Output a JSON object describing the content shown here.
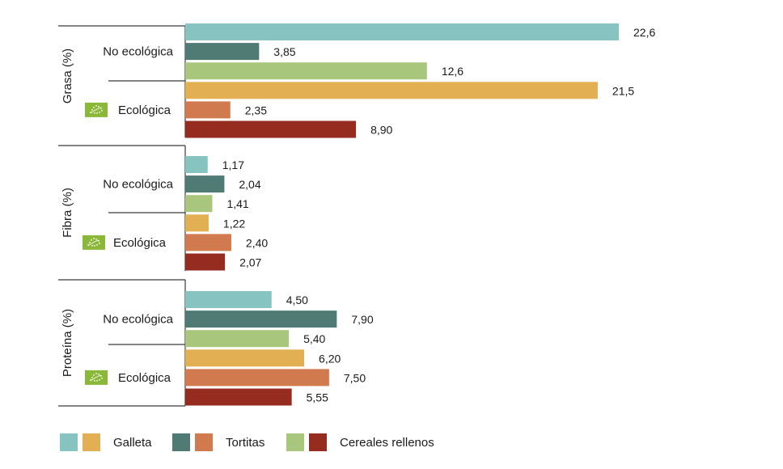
{
  "chart_data": {
    "type": "bar",
    "orientation": "horizontal",
    "xlim": [
      0,
      22.6
    ],
    "colors": {
      "galleta_noeco": "#86c3c1",
      "tortitas_noeco": "#507a74",
      "cereales_noeco": "#a8c77d",
      "galleta_eco": "#e2b052",
      "tortitas_eco": "#d27a4f",
      "cereales_eco": "#962b20",
      "eco_badge": "#8cb83a"
    },
    "groups": [
      {
        "name": "Grasa (%)",
        "subgroups": [
          {
            "label": "No ecológica",
            "eco": false,
            "bars": [
              {
                "product": "Galleta",
                "value": 22.6,
                "text": "22,6"
              },
              {
                "product": "Tortitas",
                "value": 3.85,
                "text": "3,85"
              },
              {
                "product": "Cereales rellenos",
                "value": 12.6,
                "text": "12,6"
              }
            ]
          },
          {
            "label": "Ecológica",
            "eco": true,
            "bars": [
              {
                "product": "Galleta",
                "value": 21.5,
                "text": "21,5"
              },
              {
                "product": "Tortitas",
                "value": 2.35,
                "text": "2,35"
              },
              {
                "product": "Cereales rellenos",
                "value": 8.9,
                "text": "8,90"
              }
            ]
          }
        ]
      },
      {
        "name": "Fibra (%)",
        "subgroups": [
          {
            "label": "No ecológica",
            "eco": false,
            "bars": [
              {
                "product": "Galleta",
                "value": 1.17,
                "text": "1,17"
              },
              {
                "product": "Tortitas",
                "value": 2.04,
                "text": "2,04"
              },
              {
                "product": "Cereales rellenos",
                "value": 1.41,
                "text": "1,41"
              }
            ]
          },
          {
            "label": "Ecológica",
            "eco": true,
            "bars": [
              {
                "product": "Galleta",
                "value": 1.22,
                "text": "1,22"
              },
              {
                "product": "Tortitas",
                "value": 2.4,
                "text": "2,40"
              },
              {
                "product": "Cereales rellenos",
                "value": 2.07,
                "text": "2,07"
              }
            ]
          }
        ]
      },
      {
        "name": "Proteína (%)",
        "subgroups": [
          {
            "label": "No ecológica",
            "eco": false,
            "bars": [
              {
                "product": "Galleta",
                "value": 4.5,
                "text": "4,50"
              },
              {
                "product": "Tortitas",
                "value": 7.9,
                "text": "7,90"
              },
              {
                "product": "Cereales rellenos",
                "value": 5.4,
                "text": "5,40"
              }
            ]
          },
          {
            "label": "Ecológica",
            "eco": true,
            "bars": [
              {
                "product": "Galleta",
                "value": 6.2,
                "text": "6,20"
              },
              {
                "product": "Tortitas",
                "value": 7.5,
                "text": "7,50"
              },
              {
                "product": "Cereales rellenos",
                "value": 5.55,
                "text": "5,55"
              }
            ]
          }
        ]
      }
    ],
    "legend": {
      "placement": "bottom-left",
      "entries": [
        {
          "label": "Galleta",
          "color_noeco": "#86c3c1",
          "color_eco": "#e2b052"
        },
        {
          "label": "Tortitas",
          "color_noeco": "#507a74",
          "color_eco": "#d27a4f"
        },
        {
          "label": "Cereales rellenos",
          "color_noeco": "#a8c77d",
          "color_eco": "#962b20"
        }
      ]
    },
    "eco_icon": "eu-organic-leaf-icon"
  }
}
